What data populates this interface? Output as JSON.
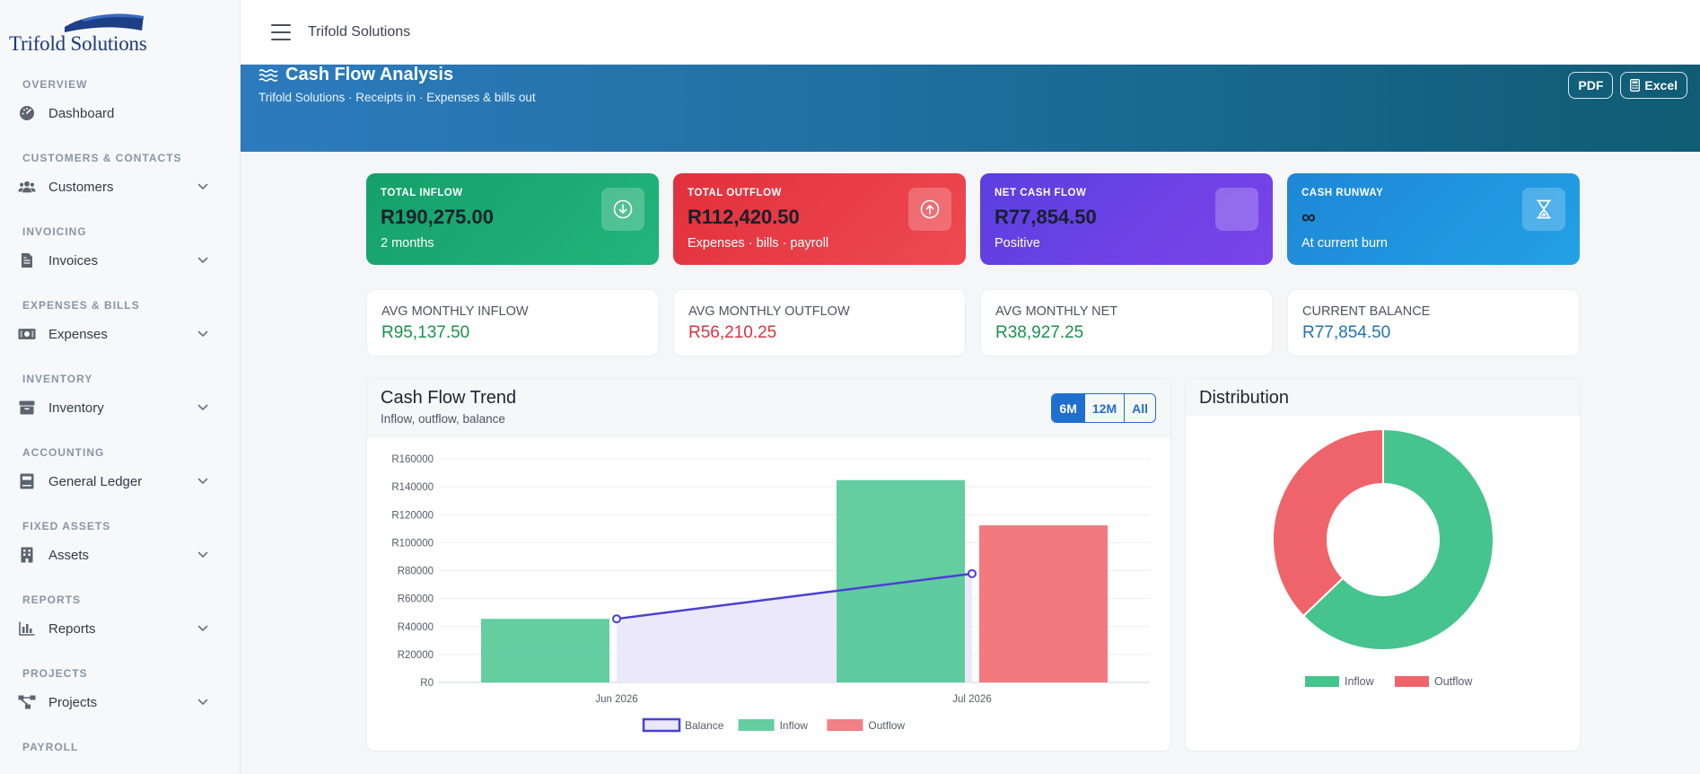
{
  "app": {
    "logo_text": "Trifold Solutions",
    "topbar_title": "Trifold Solutions"
  },
  "sidebar": {
    "sections": [
      {
        "heading": "OVERVIEW",
        "item": {
          "label": "Dashboard",
          "icon": "dashboard-gauge-icon",
          "expandable": false
        }
      },
      {
        "heading": "CUSTOMERS & CONTACTS",
        "item": {
          "label": "Customers",
          "icon": "users-icon",
          "expandable": true
        }
      },
      {
        "heading": "INVOICING",
        "item": {
          "label": "Invoices",
          "icon": "invoice-file-icon",
          "expandable": true
        }
      },
      {
        "heading": "EXPENSES & BILLS",
        "item": {
          "label": "Expenses",
          "icon": "money-bill-icon",
          "expandable": true
        }
      },
      {
        "heading": "INVENTORY",
        "item": {
          "label": "Inventory",
          "icon": "box-icon",
          "expandable": true
        }
      },
      {
        "heading": "ACCOUNTING",
        "item": {
          "label": "General Ledger",
          "icon": "ledger-book-icon",
          "expandable": true
        }
      },
      {
        "heading": "FIXED ASSETS",
        "item": {
          "label": "Assets",
          "icon": "building-icon",
          "expandable": true
        }
      },
      {
        "heading": "REPORTS",
        "item": {
          "label": "Reports",
          "icon": "bar-chart-icon",
          "expandable": true
        }
      },
      {
        "heading": "PROJECTS",
        "item": {
          "label": "Projects",
          "icon": "project-diagram-icon",
          "expandable": true
        }
      },
      {
        "heading": "PAYROLL",
        "item": null
      }
    ]
  },
  "banner": {
    "title": "Cash Flow Analysis",
    "subtitle": "Trifold Solutions · Receipts in · Expenses & bills out",
    "pdf_label": "PDF",
    "excel_label": "Excel"
  },
  "cards": [
    {
      "label": "TOTAL INFLOW",
      "value": "R190,275.00",
      "sub": "2 months",
      "icon": "arrow-down-circle-icon"
    },
    {
      "label": "TOTAL OUTFLOW",
      "value": "R112,420.50",
      "sub": "Expenses · bills · payroll",
      "icon": "arrow-up-circle-icon"
    },
    {
      "label": "NET CASH FLOW",
      "value": "R77,854.50",
      "sub": "Positive",
      "icon": "net-flow-icon"
    },
    {
      "label": "CASH RUNWAY",
      "value": "∞",
      "sub": "At current burn",
      "icon": "hourglass-icon"
    }
  ],
  "averages": [
    {
      "label": "AVG MONTHLY INFLOW",
      "value": "R95,137.50",
      "color": "#1a9150"
    },
    {
      "label": "AVG MONTHLY OUTFLOW",
      "value": "R56,210.25",
      "color": "#d93340"
    },
    {
      "label": "AVG MONTHLY NET",
      "value": "R38,927.25",
      "color": "#1a9150"
    },
    {
      "label": "CURRENT BALANCE",
      "value": "R77,854.50",
      "color": "#1f73b7"
    }
  ],
  "trend": {
    "title": "Cash Flow Trend",
    "subtitle": "Inflow, outflow, balance",
    "ranges": [
      "6M",
      "12M",
      "All"
    ],
    "active_range": "6M"
  },
  "distribution": {
    "title": "Distribution"
  },
  "chart_data": [
    {
      "type": "bar",
      "categories": [
        "Jun 2026",
        "Jul 2026"
      ],
      "ylim": [
        0,
        160000
      ],
      "ytick_step": 20000,
      "ytick_prefix": "R",
      "series": [
        {
          "name": "Balance",
          "type": "area-line",
          "values": [
            45500,
            77854.5
          ],
          "color": "#4b3fd6"
        },
        {
          "name": "Inflow",
          "type": "bar",
          "values": [
            45500,
            144775
          ],
          "color": "#49c691"
        },
        {
          "name": "Outflow",
          "type": "bar",
          "values": [
            0,
            112420.5
          ],
          "color": "#ef6b71"
        }
      ],
      "legend": "bottom"
    },
    {
      "type": "pie",
      "donut": true,
      "labels": [
        "Inflow",
        "Outflow"
      ],
      "values": [
        190275.0,
        112420.5
      ],
      "colors": [
        "#45c48e",
        "#ef646a"
      ],
      "legend": "bottom"
    }
  ]
}
